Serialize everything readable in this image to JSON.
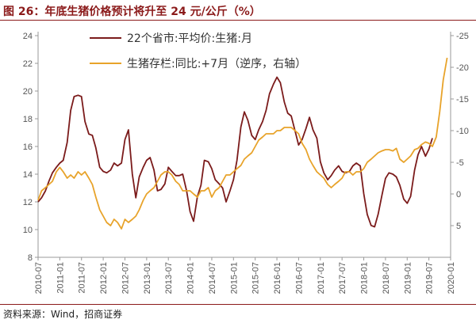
{
  "title": "图 26：年底生猪价格预计将升至 24 元/公斤（%）",
  "source": "资料来源：Wind，招商证券",
  "colors": {
    "series1": "#7b1b1b",
    "series2": "#e8a32a",
    "title": "#8b1a1a",
    "axis": "#999999"
  },
  "chart_data": {
    "type": "line",
    "x_ticks": [
      "2010-07",
      "2011-01",
      "2011-07",
      "2012-01",
      "2012-07",
      "2013-01",
      "2013-07",
      "2014-01",
      "2014-07",
      "2015-01",
      "2015-07",
      "2016-01",
      "2016-07",
      "2017-01",
      "2017-07",
      "2018-01",
      "2018-07",
      "2019-01",
      "2019-07",
      "2020-01"
    ],
    "y_left": {
      "ticks": [
        8,
        10,
        12,
        14,
        16,
        18,
        20,
        22,
        24
      ],
      "range": [
        8,
        24
      ]
    },
    "y_right": {
      "ticks": [
        5,
        0,
        -5,
        -10,
        -15,
        -20,
        -25
      ],
      "tick_labels": [
        "5",
        "0",
        "-5",
        "-10",
        "-15",
        "-20",
        "-25"
      ],
      "range": [
        10,
        -25
      ],
      "inverted": true
    },
    "legend_position": "top-center",
    "series": [
      {
        "name": "22个省市:平均价:生猪:月",
        "axis": "left",
        "color": "#7b1b1b",
        "x": [
          2010.5,
          2010.58,
          2010.67,
          2010.75,
          2010.83,
          2010.92,
          2011.0,
          2011.08,
          2011.17,
          2011.25,
          2011.33,
          2011.42,
          2011.5,
          2011.58,
          2011.67,
          2011.75,
          2011.83,
          2011.92,
          2012.0,
          2012.08,
          2012.17,
          2012.25,
          2012.33,
          2012.42,
          2012.5,
          2012.58,
          2012.67,
          2012.75,
          2012.83,
          2012.92,
          2013.0,
          2013.08,
          2013.17,
          2013.25,
          2013.33,
          2013.42,
          2013.5,
          2013.58,
          2013.67,
          2013.75,
          2013.83,
          2013.92,
          2014.0,
          2014.08,
          2014.17,
          2014.25,
          2014.33,
          2014.42,
          2014.5,
          2014.58,
          2014.67,
          2014.75,
          2014.83,
          2014.92,
          2015.0,
          2015.08,
          2015.17,
          2015.25,
          2015.33,
          2015.42,
          2015.5,
          2015.58,
          2015.67,
          2015.75,
          2015.83,
          2015.92,
          2016.0,
          2016.08,
          2016.17,
          2016.25,
          2016.33,
          2016.42,
          2016.5,
          2016.58,
          2016.67,
          2016.75,
          2016.83,
          2016.92,
          2017.0,
          2017.08,
          2017.17,
          2017.25,
          2017.33,
          2017.42,
          2017.5,
          2017.58,
          2017.67,
          2017.75,
          2017.83,
          2017.92,
          2018.0,
          2018.08,
          2018.17,
          2018.25,
          2018.33,
          2018.42,
          2018.5,
          2018.58,
          2018.67,
          2018.75,
          2018.83,
          2018.92,
          2019.0,
          2019.08,
          2019.17,
          2019.25,
          2019.33,
          2019.42,
          2019.5,
          2019.58
        ],
        "y": [
          12.0,
          12.3,
          12.8,
          13.5,
          14.1,
          14.5,
          14.8,
          15.0,
          16.3,
          18.6,
          19.6,
          19.7,
          19.6,
          17.8,
          16.9,
          16.8,
          15.9,
          14.5,
          14.2,
          14.1,
          14.3,
          14.8,
          14.6,
          14.8,
          16.5,
          17.2,
          14.0,
          12.3,
          13.8,
          14.5,
          15.0,
          15.2,
          14.3,
          12.8,
          12.9,
          13.3,
          14.5,
          14.2,
          13.9,
          13.9,
          14.0,
          12.8,
          11.3,
          10.6,
          12.4,
          13.2,
          15.0,
          14.9,
          14.4,
          13.6,
          13.3,
          13.0,
          12.0,
          12.8,
          13.6,
          15.0,
          17.4,
          18.5,
          17.9,
          16.8,
          16.5,
          17.2,
          17.8,
          18.6,
          19.8,
          20.5,
          21.0,
          20.6,
          19.2,
          18.4,
          18.2,
          17.1,
          16.1,
          16.5,
          17.3,
          18.1,
          17.2,
          16.6,
          14.9,
          14.1,
          13.6,
          13.9,
          14.3,
          14.6,
          14.2,
          14.1,
          14.2,
          14.6,
          14.8,
          14.6,
          12.6,
          11.1,
          10.3,
          10.2,
          11.1,
          12.5,
          13.7,
          14.1,
          14.0,
          13.8,
          13.2,
          12.2,
          11.9,
          12.4,
          14.3,
          15.4,
          16.0,
          15.3,
          15.8,
          16.6
        ]
      },
      {
        "name": "生猪存栏:同比:+7月（逆序，右轴）",
        "axis": "right",
        "color": "#e8a32a",
        "x": [
          2010.5,
          2010.58,
          2010.67,
          2010.75,
          2010.83,
          2010.92,
          2011.0,
          2011.08,
          2011.17,
          2011.25,
          2011.33,
          2011.42,
          2011.5,
          2011.58,
          2011.67,
          2011.75,
          2011.83,
          2011.92,
          2012.0,
          2012.08,
          2012.17,
          2012.25,
          2012.33,
          2012.42,
          2012.5,
          2012.58,
          2012.67,
          2012.75,
          2012.83,
          2012.92,
          2013.0,
          2013.08,
          2013.17,
          2013.25,
          2013.33,
          2013.42,
          2013.5,
          2013.58,
          2013.67,
          2013.75,
          2013.83,
          2013.92,
          2014.0,
          2014.08,
          2014.17,
          2014.25,
          2014.33,
          2014.42,
          2014.5,
          2014.58,
          2014.67,
          2014.75,
          2014.83,
          2014.92,
          2015.0,
          2015.08,
          2015.17,
          2015.25,
          2015.33,
          2015.42,
          2015.5,
          2015.58,
          2015.67,
          2015.75,
          2015.83,
          2015.92,
          2016.0,
          2016.08,
          2016.17,
          2016.25,
          2016.33,
          2016.42,
          2016.5,
          2016.58,
          2016.67,
          2016.75,
          2016.83,
          2016.92,
          2017.0,
          2017.08,
          2017.17,
          2017.25,
          2017.33,
          2017.42,
          2017.5,
          2017.58,
          2017.67,
          2017.75,
          2017.83,
          2017.92,
          2018.0,
          2018.08,
          2018.17,
          2018.25,
          2018.33,
          2018.42,
          2018.5,
          2018.58,
          2018.67,
          2018.75,
          2018.83,
          2018.92,
          2019.0,
          2019.08,
          2019.17,
          2019.25,
          2019.33,
          2019.42,
          2019.5,
          2019.58,
          2019.67,
          2019.75,
          2019.83,
          2019.92
        ],
        "y": [
          1.0,
          -0.5,
          -1.0,
          -1.5,
          -2.0,
          -3.5,
          -4.2,
          -3.5,
          -2.5,
          -3.0,
          -2.5,
          -3.5,
          -3.0,
          -3.5,
          -2.5,
          -1.5,
          0.5,
          2.5,
          3.5,
          4.5,
          5.0,
          4.0,
          4.5,
          5.5,
          4.0,
          4.5,
          4.0,
          3.5,
          2.5,
          1.0,
          0.0,
          -0.5,
          -1.0,
          -2.0,
          -3.0,
          -3.5,
          -3.5,
          -3.0,
          -2.0,
          -1.5,
          -0.5,
          -0.5,
          -0.5,
          0.0,
          0.5,
          -0.5,
          -0.5,
          -1.0,
          0.5,
          -0.5,
          -1.0,
          -2.0,
          -3.0,
          -3.0,
          -3.5,
          -4.0,
          -4.5,
          -5.5,
          -6.0,
          -6.5,
          -7.5,
          -8.5,
          -9.0,
          -9.5,
          -9.5,
          -9.5,
          -10.0,
          -10.0,
          -10.5,
          -10.5,
          -10.5,
          -10.0,
          -9.5,
          -8.0,
          -7.0,
          -5.5,
          -4.5,
          -3.5,
          -3.0,
          -2.5,
          -1.5,
          -1.0,
          -1.5,
          -2.0,
          -2.5,
          -3.5,
          -3.5,
          -3.0,
          -3.5,
          -3.5,
          -4.0,
          -5.0,
          -5.5,
          -6.0,
          -6.5,
          -6.8,
          -7.0,
          -7.0,
          -6.8,
          -7.2,
          -5.5,
          -5.0,
          -5.5,
          -6.0,
          -7.0,
          -7.2,
          -7.8,
          -8.2,
          -8.0,
          -7.5,
          -9.0,
          -13.0,
          -18.0,
          -21.5
        ]
      }
    ]
  }
}
